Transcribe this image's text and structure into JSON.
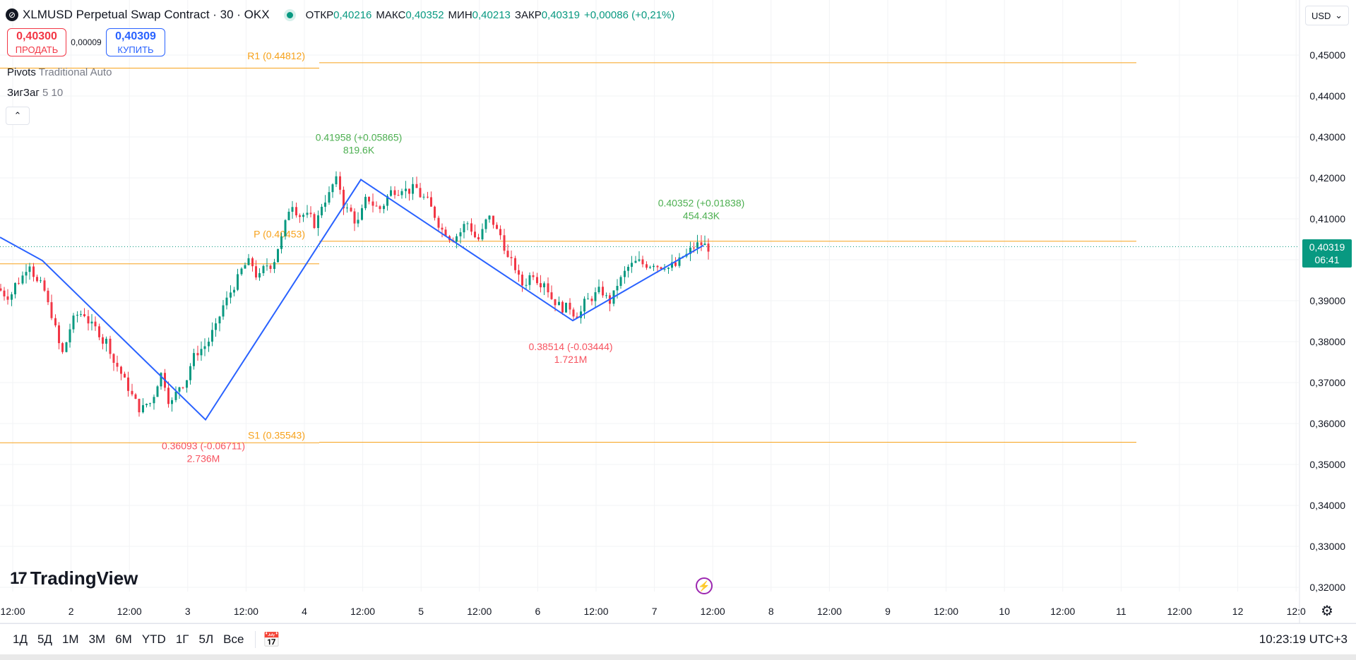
{
  "header": {
    "symbol_icon": "stellar-logo-icon",
    "title": "XLMUSD Perpetual Swap Contract · 30 · OKX",
    "ohlc": [
      {
        "label": "ОТКР",
        "value": "0,40216"
      },
      {
        "label": "МАКС",
        "value": "0,40352"
      },
      {
        "label": "МИН",
        "value": "0,40213"
      },
      {
        "label": "ЗАКР",
        "value": "0,40319"
      },
      {
        "label": "",
        "value": "+0,00086 (+0,21%)"
      }
    ]
  },
  "trade": {
    "sell_price": "0,40300",
    "sell_label": "ПРОДАТЬ",
    "spread": "0,00009",
    "buy_price": "0,40309",
    "buy_label": "КУПИТЬ"
  },
  "indicators": {
    "pivots_name": "Pivots",
    "pivots_params": "Traditional Auto",
    "zigzag_name": "ЗигЗаг",
    "zigzag_params": "5 10"
  },
  "currency": "USD",
  "last_price": {
    "price": "0,40319",
    "countdown": "06:41"
  },
  "colors": {
    "up": "#089981",
    "down": "#f23645",
    "pivot": "#f7a21b",
    "zigzag": "#2962ff",
    "label_up": "#4caf50",
    "label_down": "#f7525f"
  },
  "chart_data": {
    "type": "candlestick",
    "ylim": [
      0.3185,
      0.4535
    ],
    "y_ticks": [
      "0,45000",
      "0,44000",
      "0,43000",
      "0,42000",
      "0,41000",
      "0,40000",
      "0,39000",
      "0,38000",
      "0,37000",
      "0,36000",
      "0,35000",
      "0,34000",
      "0,33000",
      "0,32000"
    ],
    "x_ticks": [
      "12:00",
      "2",
      "12:00",
      "3",
      "12:00",
      "4",
      "12:00",
      "5",
      "12:00",
      "6",
      "12:00",
      "7",
      "12:00",
      "8",
      "12:00",
      "9",
      "12:00",
      "10",
      "12:00",
      "11",
      "12:00",
      "12",
      "12:0"
    ],
    "pivots": [
      {
        "label": "R1 (0.44812)",
        "value": 0.44812
      },
      {
        "label": "P (0.40453)",
        "value": 0.40453
      },
      {
        "label": "S1 (0.35543)",
        "value": 0.35543
      }
    ],
    "zigzag": [
      {
        "price": 0.4055,
        "label1": "",
        "label2": ""
      },
      {
        "price": 0.3998,
        "label1": "",
        "label2": ""
      },
      {
        "price": 0.36093,
        "label1": "0.36093 (-0.06711)",
        "label2": "2.736M"
      },
      {
        "price": 0.41958,
        "label1": "0.41958 (+0.05865)",
        "label2": "819.6K"
      },
      {
        "price": 0.38514,
        "label1": "0.38514 (-0.03444)",
        "label2": "1.721M"
      },
      {
        "price": 0.40352,
        "label1": "0.40352 (+0.01838)",
        "label2": "454.43K"
      }
    ],
    "candle_path_close": [
      0.3915,
      0.395,
      0.3995,
      0.3935,
      0.387,
      0.377,
      0.385,
      0.387,
      0.383,
      0.38,
      0.374,
      0.369,
      0.364,
      0.365,
      0.372,
      0.365,
      0.37,
      0.376,
      0.379,
      0.383,
      0.39,
      0.395,
      0.399,
      0.3955,
      0.399,
      0.405,
      0.414,
      0.411,
      0.409,
      0.415,
      0.419,
      0.412,
      0.409,
      0.415,
      0.4125,
      0.4165,
      0.418,
      0.417,
      0.415,
      0.411,
      0.407,
      0.406,
      0.409,
      0.405,
      0.41,
      0.406,
      0.399,
      0.394,
      0.397,
      0.395,
      0.39,
      0.388,
      0.387,
      0.39,
      0.392,
      0.39,
      0.395,
      0.3985,
      0.399,
      0.3995,
      0.399,
      0.3985,
      0.401,
      0.4035,
      0.4032
    ]
  },
  "bottom": {
    "ranges": [
      "1Д",
      "5Д",
      "1М",
      "3М",
      "6М",
      "YTD",
      "1Г",
      "5Л",
      "Все"
    ],
    "clock": "10:23:19 UTC+3"
  },
  "branding": {
    "logo": "TradingView"
  }
}
